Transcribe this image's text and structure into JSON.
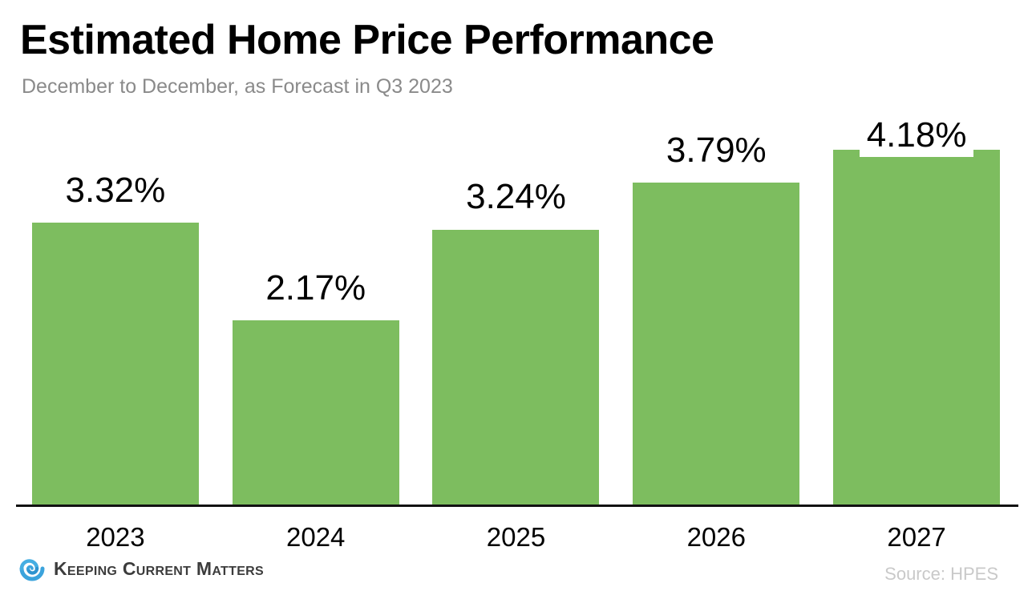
{
  "header": {
    "title": "Estimated Home Price Performance",
    "subtitle": "December to December, as Forecast in Q3 2023"
  },
  "chart_data": {
    "type": "bar",
    "title": "Estimated Home Price Performance",
    "subtitle": "December to December, as Forecast in Q3 2023",
    "categories": [
      "2023",
      "2024",
      "2025",
      "2026",
      "2027"
    ],
    "values": [
      3.32,
      2.17,
      3.24,
      3.79,
      4.18
    ],
    "value_labels": [
      "3.32%",
      "2.17%",
      "3.24%",
      "3.79%",
      "4.18%"
    ],
    "xlabel": "",
    "ylabel": "",
    "ylim": [
      0,
      4.6
    ],
    "grid": false,
    "legend": false,
    "bar_color": "#7dbd5f",
    "axis_color": "#121212"
  },
  "footer": {
    "brand": "Keeping Current Matters",
    "source": "Source: HPES"
  },
  "colors": {
    "title_text": "#000000",
    "subtitle_text": "#8a8a8a",
    "source_text": "#c9c9c9",
    "logo_blue": "#3ba3dc"
  }
}
